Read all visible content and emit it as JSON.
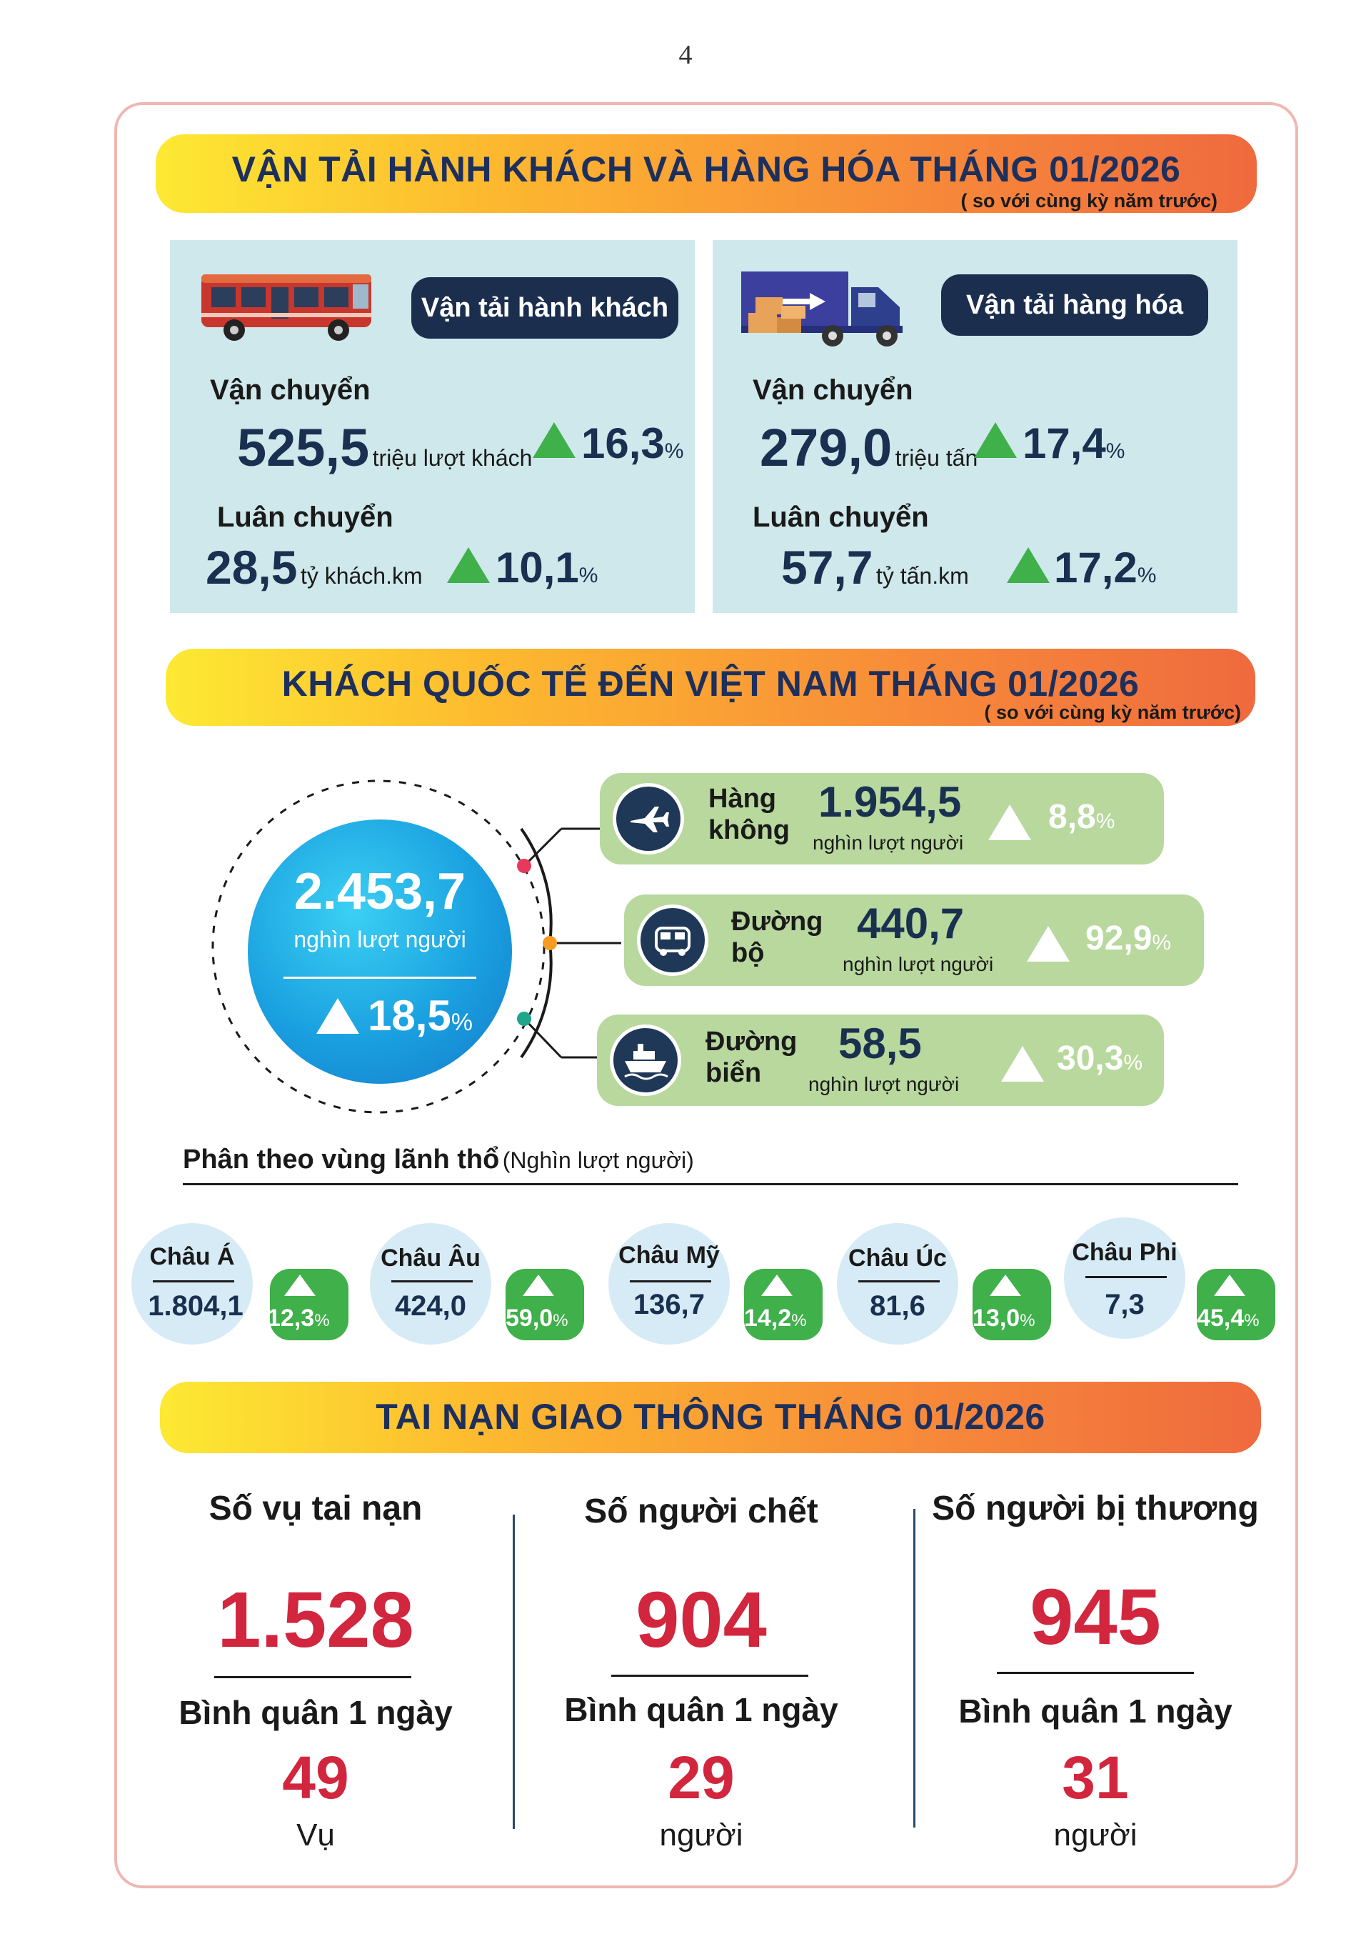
{
  "page_number": "4",
  "transport": {
    "banner_title": "VẬN TẢI HÀNH KHÁCH VÀ HÀNG HÓA THÁNG 01/2026",
    "banner_subtitle": "( so với cùng kỳ năm trước)",
    "passenger": {
      "pill": "Vận tải hành khách",
      "carried_label": "Vận chuyển",
      "carried_value": "525,5",
      "carried_unit": "triệu lượt khách",
      "carried_pct": "16,3",
      "rotation_label": "Luân chuyển",
      "rotation_value": "28,5",
      "rotation_unit": "tỷ khách.km",
      "rotation_pct": "10,1",
      "pct_sign": "%"
    },
    "cargo": {
      "pill": "Vận tải hàng hóa",
      "carried_label": "Vận chuyển",
      "carried_value": "279,0",
      "carried_unit": "triệu tấn",
      "carried_pct": "17,4",
      "rotation_label": "Luân chuyển",
      "rotation_value": "57,7",
      "rotation_unit": "tỷ tấn.km",
      "rotation_pct": "17,2",
      "pct_sign": "%"
    }
  },
  "visitors": {
    "banner_title": "KHÁCH QUỐC TẾ ĐẾN VIỆT NAM THÁNG 01/2026",
    "banner_subtitle": "( so với cùng kỳ năm trước)",
    "total_value": "2.453,7",
    "total_unit": "nghìn lượt người",
    "total_pct": "18,5",
    "pct_sign": "%",
    "routes": [
      {
        "name_1": "Hàng",
        "name_2": "không",
        "value": "1.954,5",
        "unit": "nghìn lượt người",
        "pct": "8,8",
        "icon": "airplane-icon"
      },
      {
        "name_1": "Đường",
        "name_2": "bộ",
        "value": "440,7",
        "unit": "nghìn lượt người",
        "pct": "92,9",
        "icon": "bus-icon"
      },
      {
        "name_1": "Đường",
        "name_2": "biển",
        "value": "58,5",
        "unit": "nghìn lượt người",
        "pct": "30,3",
        "icon": "ship-icon"
      }
    ],
    "region_heading": "Phân theo vùng lãnh thổ",
    "region_heading_unit": "(Nghìn lượt người)",
    "regions": [
      {
        "name": "Châu Á",
        "value": "1.804,1",
        "pct": "12,3"
      },
      {
        "name": "Châu Âu",
        "value": "424,0",
        "pct": "59,0"
      },
      {
        "name": "Châu Mỹ",
        "value": "136,7",
        "pct": "14,2"
      },
      {
        "name": "Châu Úc",
        "value": "81,6",
        "pct": "13,0"
      },
      {
        "name": "Châu Phi",
        "value": "7,3",
        "pct": "45,4"
      }
    ]
  },
  "accidents": {
    "banner_title": "TAI NẠN GIAO THÔNG THÁNG 01/2026",
    "avg_label": "Bình quân 1 ngày",
    "columns": [
      {
        "title": "Số vụ tai nạn",
        "total": "1.528",
        "avg": "49",
        "unit": "Vụ"
      },
      {
        "title": "Số người chết",
        "total": "904",
        "avg": "29",
        "unit": "người"
      },
      {
        "title": "Số người bị thương",
        "total": "945",
        "avg": "31",
        "unit": "người"
      }
    ]
  },
  "colors": {
    "navy": "#1b2e4e",
    "accent_red": "#d1263e",
    "up_green": "#3fb04a",
    "route_green": "#b8d89d",
    "panel_blue": "#cfe8ec"
  }
}
